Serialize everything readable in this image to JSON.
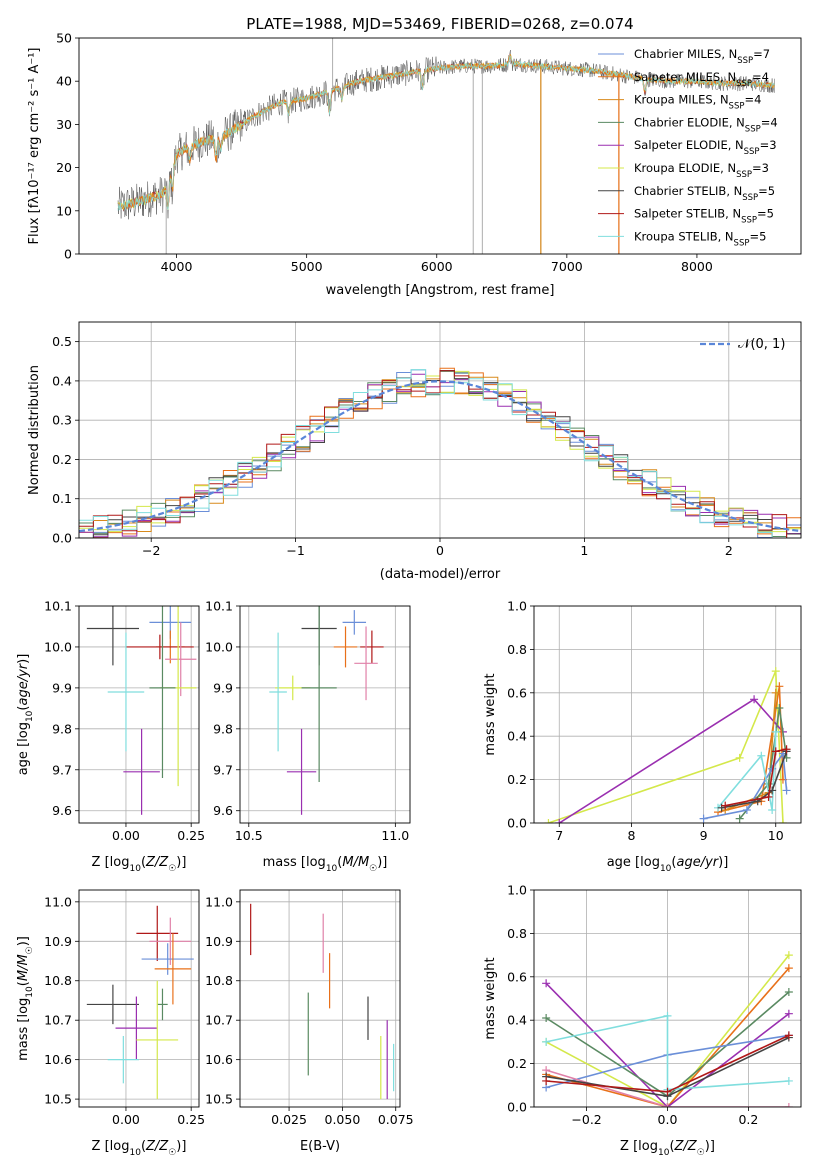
{
  "colors": {
    "Chabrier MILES": "#6b8fd8",
    "Salpeter MILES": "#e8701a",
    "Kroupa MILES": "#d88a1c",
    "Chabrier ELODIE": "#5a8a62",
    "Salpeter ELODIE": "#9a2fb0",
    "Kroupa ELODIE": "#d4e84a",
    "Chabrier STELIB": "#444444",
    "Salpeter STELIB": "#b01818",
    "Kroupa STELIB": "#80dede",
    "pink": "#e080a8",
    "gauss": "#5a86d8"
  },
  "chart_data": [
    {
      "id": "spectrum",
      "type": "line",
      "title": "PLATE=1988, MJD=53469, FIBERID=0268, z=0.074",
      "xlabel": "wavelength [Angstrom, rest frame]",
      "ylabel": "Flux [fλ10⁻¹⁷ erg cm⁻² s⁻¹ A⁻¹]",
      "xlim": [
        3250,
        8800
      ],
      "ylim": [
        0,
        50
      ],
      "xticks": [
        4000,
        5000,
        6000,
        7000,
        8000
      ],
      "yticks": [
        0,
        10,
        20,
        30,
        40,
        50
      ],
      "legend_position": "upper-right",
      "legend": [
        "Chabrier MILES, N_SSP=7",
        "Salpeter MILES, N_SSP=4",
        "Kroupa MILES, N_SSP=4",
        "Chabrier ELODIE, N_SSP=4",
        "Salpeter ELODIE, N_SSP=3",
        "Kroupa ELODIE, N_SSP=3",
        "Chabrier STELIB, N_SSP=5",
        "Salpeter STELIB, N_SSP=5",
        "Kroupa STELIB, N_SSP=5"
      ],
      "continuum": {
        "x": [
          3550,
          3700,
          3800,
          3900,
          4000,
          4100,
          4200,
          4400,
          4600,
          4800,
          5000,
          5200,
          5400,
          5600,
          5800,
          6000,
          6200,
          6400,
          6600,
          6800,
          7000,
          7200,
          7400,
          7600,
          7800,
          8000,
          8200,
          8400,
          8600
        ],
        "y": [
          11,
          12,
          13,
          14,
          23,
          25,
          26,
          28,
          32,
          35,
          36,
          38,
          40,
          41,
          42,
          43,
          43.5,
          43.5,
          44,
          43.5,
          43,
          42.5,
          41.5,
          40.5,
          40,
          40,
          39.5,
          39.5,
          39
        ]
      }
    },
    {
      "id": "residuals",
      "type": "histogram",
      "xlabel": "(data-model)/error",
      "ylabel": "Normed distribution",
      "xlim": [
        -2.5,
        2.5
      ],
      "ylim": [
        0,
        0.55
      ],
      "xticks": [
        -2,
        -1,
        0,
        1,
        2
      ],
      "yticks": [
        0.0,
        0.1,
        0.2,
        0.3,
        0.4,
        0.5
      ],
      "legend": [
        "𝒩(0, 1)"
      ],
      "legend_position": "upper-right",
      "grid": true
    },
    {
      "id": "age-vs-z",
      "type": "errorbar",
      "xlabel": "Z [log10(Z/Z☉)]",
      "ylabel": "age  [log10(age/yr)]",
      "xlim": [
        -0.18,
        0.28
      ],
      "ylim": [
        9.57,
        10.1
      ],
      "xticks": [
        0.0,
        0.25
      ],
      "yticks": [
        9.6,
        9.7,
        9.8,
        9.9,
        10.0,
        10.1
      ],
      "points": [
        {
          "c": "Chabrier STELIB",
          "x": -0.05,
          "y": 10.045,
          "xe": 0.1,
          "ye": 0.09
        },
        {
          "c": "Chabrier MILES",
          "x": 0.17,
          "y": 10.06,
          "xe": 0.08,
          "ye": 0.04
        },
        {
          "c": "Salpeter MILES",
          "x": 0.17,
          "y": 10.0,
          "xe": 0.055,
          "ye": 0.04
        },
        {
          "c": "Salpeter STELIB",
          "x": 0.13,
          "y": 10.0,
          "xe": 0.13,
          "ye": 0.03
        },
        {
          "c": "pink",
          "x": 0.21,
          "y": 9.97,
          "xe": 0.06,
          "ye": 0.09
        },
        {
          "c": "Kroupa ELODIE",
          "x": 0.2,
          "y": 9.9,
          "xe": 0.07,
          "ye": 0.24
        },
        {
          "c": "Chabrier ELODIE",
          "x": 0.14,
          "y": 9.9,
          "xe": 0.05,
          "ye": 0.22
        },
        {
          "c": "Kroupa STELIB",
          "x": 0.0,
          "y": 9.89,
          "xe": 0.07,
          "ye": 0.145
        },
        {
          "c": "Salpeter ELODIE",
          "x": 0.06,
          "y": 9.695,
          "xe": 0.07,
          "ye": 0.105
        }
      ]
    },
    {
      "id": "age-vs-mass",
      "type": "errorbar",
      "xlabel": "mass [log10(M/M☉)]",
      "ylabel": "",
      "xlim": [
        10.47,
        11.05
      ],
      "ylim": [
        9.57,
        10.1
      ],
      "xticks": [
        10.5,
        11.0
      ],
      "yticks": [
        9.6,
        9.7,
        9.8,
        9.9,
        10.0,
        10.1
      ],
      "points": [
        {
          "c": "Chabrier STELIB",
          "x": 10.74,
          "y": 10.045,
          "xe": 0.06,
          "ye": 0.09
        },
        {
          "c": "Chabrier MILES",
          "x": 10.86,
          "y": 10.06,
          "xe": 0.04,
          "ye": 0.03
        },
        {
          "c": "Salpeter MILES",
          "x": 10.83,
          "y": 10.0,
          "xe": 0.04,
          "ye": 0.05
        },
        {
          "c": "Salpeter STELIB",
          "x": 10.92,
          "y": 10.0,
          "xe": 0.04,
          "ye": 0.04
        },
        {
          "c": "pink",
          "x": 10.9,
          "y": 9.96,
          "xe": 0.04,
          "ye": 0.09
        },
        {
          "c": "Kroupa ELODIE",
          "x": 10.65,
          "y": 9.9,
          "xe": 0.06,
          "ye": 0.03
        },
        {
          "c": "Chabrier ELODIE",
          "x": 10.74,
          "y": 9.9,
          "xe": 0.06,
          "ye": 0.23
        },
        {
          "c": "Kroupa STELIB",
          "x": 10.6,
          "y": 9.89,
          "xe": 0.03,
          "ye": 0.145
        },
        {
          "c": "Salpeter ELODIE",
          "x": 10.68,
          "y": 9.695,
          "xe": 0.05,
          "ye": 0.105
        }
      ]
    },
    {
      "id": "mass-vs-z",
      "type": "errorbar",
      "xlabel": "Z [log10(Z/Z☉)]",
      "ylabel": "mass [log10(M/M☉)]",
      "xlim": [
        -0.18,
        0.28
      ],
      "ylim": [
        10.48,
        11.03
      ],
      "xticks": [
        0.0,
        0.25
      ],
      "yticks": [
        10.5,
        10.6,
        10.7,
        10.8,
        10.9,
        11.0
      ],
      "points": [
        {
          "c": "Salpeter STELIB",
          "x": 0.12,
          "y": 10.92,
          "xe": 0.08,
          "ye": 0.07
        },
        {
          "c": "pink",
          "x": 0.17,
          "y": 10.9,
          "xe": 0.08,
          "ye": 0.06
        },
        {
          "c": "Chabrier MILES",
          "x": 0.16,
          "y": 10.855,
          "xe": 0.1,
          "ye": 0.04
        },
        {
          "c": "Salpeter MILES",
          "x": 0.18,
          "y": 10.83,
          "xe": 0.07,
          "ye": 0.09
        },
        {
          "c": "Chabrier ELODIE",
          "x": 0.14,
          "y": 10.74,
          "xe": 0.02,
          "ye": 0.04
        },
        {
          "c": "Chabrier STELIB",
          "x": -0.05,
          "y": 10.74,
          "xe": 0.1,
          "ye": 0.05
        },
        {
          "c": "Salpeter ELODIE",
          "x": 0.04,
          "y": 10.68,
          "xe": 0.08,
          "ye": 0.08
        },
        {
          "c": "Kroupa ELODIE",
          "x": 0.12,
          "y": 10.65,
          "xe": 0.08,
          "ye": 0.15
        },
        {
          "c": "Kroupa STELIB",
          "x": -0.01,
          "y": 10.6,
          "xe": 0.06,
          "ye": 0.06
        }
      ]
    },
    {
      "id": "mass-vs-ebv",
      "type": "errorbar",
      "xlabel": "E(B-V)",
      "ylabel": "",
      "xlim": [
        0.002,
        0.077
      ],
      "ylim": [
        10.48,
        11.03
      ],
      "xticks": [
        0.025,
        0.05,
        0.075
      ],
      "xticklabels": [
        "0.025",
        "0.050",
        "0.075"
      ],
      "yticks": [
        10.5,
        10.6,
        10.7,
        10.8,
        10.9,
        11.0
      ],
      "points": [
        {
          "c": "Salpeter STELIB",
          "x": 0.007,
          "y": 10.93,
          "xe": 0,
          "ye": 0.065
        },
        {
          "c": "pink",
          "x": 0.041,
          "y": 10.895,
          "xe": 0,
          "ye": 0.075
        },
        {
          "c": "Salpeter MILES",
          "x": 0.044,
          "y": 10.8,
          "xe": 0,
          "ye": 0.07
        },
        {
          "c": "Chabrier ELODIE",
          "x": 0.034,
          "y": 10.665,
          "xe": 0,
          "ye": 0.105
        },
        {
          "c": "Chabrier STELIB",
          "x": 0.062,
          "y": 10.705,
          "xe": 0,
          "ye": 0.055
        },
        {
          "c": "Salpeter ELODIE",
          "x": 0.071,
          "y": 10.6,
          "xe": 0,
          "ye": 0.1
        },
        {
          "c": "Kroupa ELODIE",
          "x": 0.068,
          "y": 10.58,
          "xe": 0,
          "ye": 0.08
        },
        {
          "c": "Kroupa STELIB",
          "x": 0.074,
          "y": 10.58,
          "xe": 0,
          "ye": 0.06
        }
      ]
    },
    {
      "id": "weight-vs-age",
      "type": "line",
      "xlabel": "age  [log10(age/yr)]",
      "ylabel": "mass weight",
      "xlim": [
        6.65,
        10.35
      ],
      "ylim": [
        0,
        1.0
      ],
      "xticks": [
        7,
        8,
        9,
        10
      ],
      "yticks": [
        0.0,
        0.2,
        0.4,
        0.6,
        0.8,
        1.0
      ],
      "series": [
        {
          "c": "Kroupa ELODIE",
          "x": [
            6.85,
            9.5,
            10.0,
            10.1
          ],
          "y": [
            0.0,
            0.3,
            0.7,
            0.0
          ]
        },
        {
          "c": "Salpeter ELODIE",
          "x": [
            7.0,
            9.7,
            10.1
          ],
          "y": [
            0.0,
            0.57,
            0.42
          ]
        },
        {
          "c": "Salpeter MILES",
          "x": [
            9.2,
            9.8,
            10.05,
            10.1
          ],
          "y": [
            0.05,
            0.1,
            0.63,
            0.2
          ]
        },
        {
          "c": "Kroupa MILES",
          "x": [
            9.3,
            9.9,
            10.0
          ],
          "y": [
            0.06,
            0.14,
            0.6
          ]
        },
        {
          "c": "Chabrier ELODIE",
          "x": [
            9.5,
            9.9,
            10.05,
            10.15
          ],
          "y": [
            0.02,
            0.18,
            0.53,
            0.3
          ]
        },
        {
          "c": "Chabrier MILES",
          "x": [
            9.0,
            9.6,
            9.95,
            10.1,
            10.15
          ],
          "y": [
            0.02,
            0.06,
            0.25,
            0.32,
            0.15
          ]
        },
        {
          "c": "Kroupa STELIB",
          "x": [
            9.2,
            9.8,
            9.95,
            10.0
          ],
          "y": [
            0.07,
            0.31,
            0.06,
            0.42
          ]
        },
        {
          "c": "Chabrier STELIB",
          "x": [
            9.25,
            9.75,
            9.95,
            10.15
          ],
          "y": [
            0.07,
            0.1,
            0.15,
            0.33
          ]
        },
        {
          "c": "Salpeter STELIB",
          "x": [
            9.3,
            9.9,
            10.0,
            10.15
          ],
          "y": [
            0.08,
            0.12,
            0.33,
            0.34
          ]
        }
      ]
    },
    {
      "id": "weight-vs-z",
      "type": "line",
      "xlabel": "Z [log10(Z/Z☉)]",
      "ylabel": "mass weight",
      "xlim": [
        -0.33,
        0.33
      ],
      "ylim": [
        0,
        1.0
      ],
      "xticks": [
        -0.2,
        0.0,
        0.2
      ],
      "yticks": [
        0.0,
        0.2,
        0.4,
        0.6,
        0.8,
        1.0
      ],
      "series": [
        {
          "c": "Kroupa ELODIE",
          "x": [
            -0.3,
            0.0,
            0.3
          ],
          "y": [
            0.3,
            0.0,
            0.7
          ]
        },
        {
          "c": "Salpeter MILES",
          "x": [
            -0.3,
            0.0,
            0.3
          ],
          "y": [
            0.15,
            0.0,
            0.64
          ]
        },
        {
          "c": "Salpeter ELODIE",
          "x": [
            -0.3,
            0.0,
            0.3
          ],
          "y": [
            0.57,
            0.0,
            0.43
          ]
        },
        {
          "c": "Chabrier ELODIE",
          "x": [
            -0.3,
            0.0,
            0.3
          ],
          "y": [
            0.41,
            0.05,
            0.53
          ]
        },
        {
          "c": "Chabrier MILES",
          "x": [
            -0.3,
            0.0,
            0.3
          ],
          "y": [
            0.09,
            0.24,
            0.33
          ]
        },
        {
          "c": "Kroupa STELIB",
          "x": [
            -0.3,
            0.0,
            0.0,
            0.3
          ],
          "y": [
            0.3,
            0.42,
            0.08,
            0.12
          ]
        },
        {
          "c": "pink",
          "x": [
            -0.3,
            0.0,
            0.3
          ],
          "y": [
            0.17,
            0.0,
            0.0
          ]
        },
        {
          "c": "Chabrier STELIB",
          "x": [
            -0.3,
            0.0,
            0.3
          ],
          "y": [
            0.14,
            0.05,
            0.32
          ]
        },
        {
          "c": "Salpeter STELIB",
          "x": [
            -0.3,
            0.0,
            0.3
          ],
          "y": [
            0.12,
            0.07,
            0.33
          ]
        }
      ]
    }
  ]
}
